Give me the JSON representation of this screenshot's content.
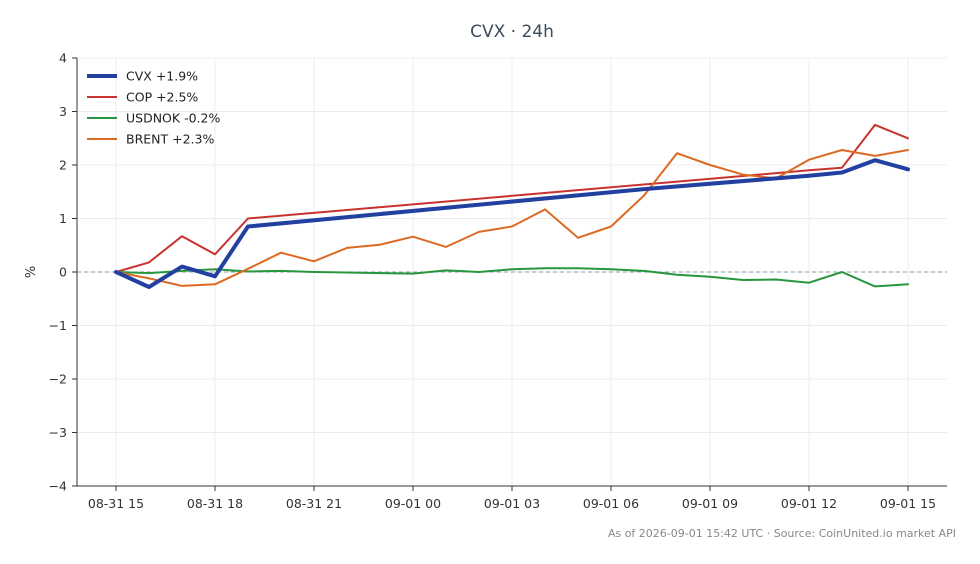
{
  "chart_data": {
    "type": "line",
    "title": "CVX · 24h",
    "xlabel": "",
    "ylabel": "%",
    "ylim": [
      -4,
      4
    ],
    "yticks": [
      4,
      3,
      2,
      1,
      0,
      -1,
      -2,
      -3,
      -4
    ],
    "ytick_labels": [
      "4",
      "3",
      "2",
      "1",
      "0",
      "−1",
      "−2",
      "−3",
      "−4"
    ],
    "xlim": [
      0,
      24.7
    ],
    "xticks": [
      0,
      3,
      6,
      9,
      12,
      15,
      18,
      21,
      24
    ],
    "xtick_labels": [
      "08-31 15",
      "08-31 18",
      "08-31 21",
      "09-01 00",
      "09-01 03",
      "09-01 06",
      "09-01 09",
      "09-01 12",
      "09-01 15"
    ],
    "grid": true,
    "zero_line": true,
    "legend_position": "top-left",
    "series": [
      {
        "name": "CVX +1.9%",
        "color": "#2140a0",
        "emphasis": true,
        "x": [
          0,
          1,
          2,
          3,
          4,
          16,
          21,
          22,
          23,
          24
        ],
        "y": [
          0,
          -0.28,
          0.1,
          -0.08,
          0.85,
          1.55,
          1.8,
          1.86,
          2.09,
          1.92
        ]
      },
      {
        "name": "COP +2.5%",
        "color": "#c8322f",
        "emphasis": false,
        "x": [
          0,
          1,
          2,
          3,
          4,
          21,
          22,
          23,
          24
        ],
        "y": [
          0,
          0.18,
          0.67,
          0.33,
          1.0,
          1.9,
          1.95,
          2.75,
          2.5
        ]
      },
      {
        "name": "USDNOK -0.2%",
        "color": "#27963e",
        "emphasis": false,
        "x": [
          0,
          1,
          2,
          3,
          4,
          5,
          6,
          7,
          8,
          9,
          10,
          11,
          12,
          13,
          14,
          15,
          16,
          17,
          18,
          19,
          20,
          21,
          22,
          23,
          24
        ],
        "y": [
          0,
          -0.02,
          0.02,
          0.05,
          0.01,
          0.02,
          0.0,
          -0.01,
          -0.02,
          -0.03,
          0.03,
          0.0,
          0.05,
          0.07,
          0.07,
          0.05,
          0.02,
          -0.05,
          -0.09,
          -0.15,
          -0.14,
          -0.2,
          0.0,
          -0.27,
          -0.23
        ]
      },
      {
        "name": "BRENT +2.3%",
        "color": "#dd6a22",
        "emphasis": false,
        "x": [
          0,
          1,
          2,
          3,
          4,
          5,
          6,
          7,
          8,
          9,
          10,
          11,
          12,
          13,
          14,
          15,
          16,
          17,
          18,
          19,
          20,
          21,
          22,
          23,
          24
        ],
        "y": [
          0,
          -0.12,
          -0.26,
          -0.23,
          0.06,
          0.36,
          0.2,
          0.45,
          0.51,
          0.66,
          0.47,
          0.75,
          0.85,
          1.17,
          0.64,
          0.85,
          1.43,
          2.22,
          2.0,
          1.82,
          1.75,
          2.1,
          2.28,
          2.17,
          2.28
        ]
      }
    ]
  },
  "footer": "As of 2026-09-01 15:42 UTC · Source: CoinUnited.io market API"
}
